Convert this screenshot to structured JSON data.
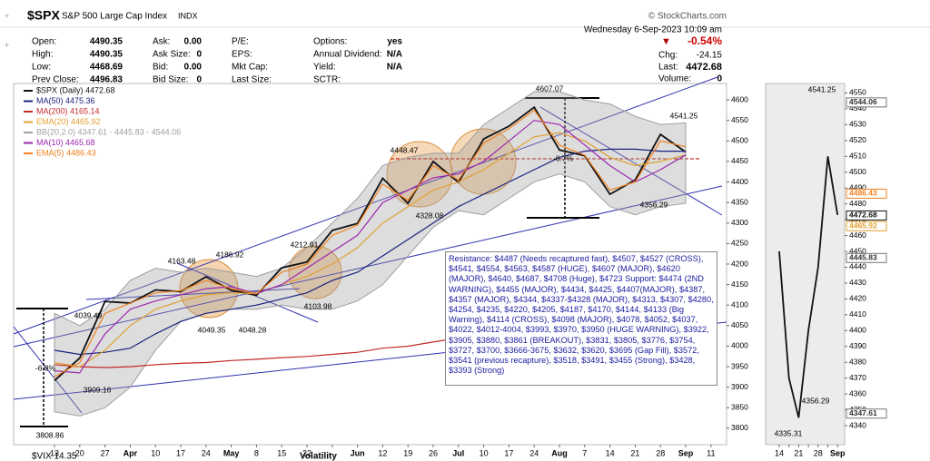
{
  "header": {
    "symbol": "$SPX",
    "name": "S&P 500 Large Cap Index",
    "exchange": "INDX",
    "date": "Wednesday  6-Sep-2023 10:09 am",
    "source": "© StockCharts.com"
  },
  "quote": {
    "rows": [
      [
        {
          "label": "Open:",
          "value": "4490.35"
        },
        {
          "label": "Ask:",
          "value": "0.00"
        },
        {
          "label": "P/E:"
        },
        {
          "label": "Options:",
          "value": "yes"
        }
      ],
      [
        {
          "label": "High:",
          "value": "4490.35"
        },
        {
          "label": "Ask Size:",
          "value": "0"
        },
        {
          "label": "EPS:"
        },
        {
          "label": "Annual Dividend:",
          "value": "N/A"
        }
      ],
      [
        {
          "label": "Low:",
          "value": "4468.69"
        },
        {
          "label": "Bid:",
          "value": "0.00"
        },
        {
          "label": "Mkt Cap:"
        },
        {
          "label": "Yield:",
          "value": "N/A"
        }
      ],
      [
        {
          "label": "Prev Close:",
          "value": "4496.83"
        },
        {
          "label": "Bid Size:",
          "value": "0"
        },
        {
          "label": "Last Size:"
        },
        {
          "label": "SCTR:"
        }
      ]
    ]
  },
  "change": {
    "pct": "-0.54%",
    "chg_label": "Chg:",
    "chg": "-24.15",
    "last_label": "Last:",
    "last": "4472.68",
    "volume_label": "Volume:",
    "volume": "0"
  },
  "chart_data": [
    {
      "type": "line",
      "categories": [
        "13",
        "20",
        "27",
        "Apr",
        "10",
        "17",
        "24",
        "May",
        "8",
        "15",
        "22",
        null,
        "Jun",
        "12",
        "19",
        "26",
        "Jul",
        "10",
        "17",
        "24",
        "Aug",
        "7",
        "14",
        "21",
        "28",
        "Sep",
        "11"
      ],
      "ylim": [
        3760,
        4640
      ],
      "yticks": [
        3800,
        3850,
        3900,
        3950,
        4000,
        4050,
        4100,
        4150,
        4200,
        4250,
        4300,
        4350,
        4400,
        4450,
        4500,
        4550,
        4600
      ],
      "series": [
        {
          "name": "$SPX (Daily) 4472.68",
          "color": "#111111",
          "values": [
            3916,
            3971,
            4109,
            4105,
            4137,
            4133,
            4169,
            4136,
            4124,
            4191,
            4205,
            4282,
            4299,
            4409,
            4348,
            4450,
            4399,
            4505,
            4536,
            4582,
            4478,
            4464,
            4370,
            4405,
            4516,
            4473,
            null
          ]
        },
        {
          "name": "MA(50) 4475.36",
          "color": "#1a237e",
          "values": [
            3990,
            3980,
            3985,
            3995,
            4030,
            4060,
            4080,
            4090,
            4100,
            4115,
            4130,
            4160,
            4180,
            4220,
            4260,
            4300,
            4340,
            4370,
            4400,
            4430,
            4460,
            4475,
            4480,
            4480,
            4475,
            4475,
            null
          ]
        },
        {
          "name": "MA(200) 4165.14",
          "color": "#c62828",
          "values": [
            3955,
            3950,
            3948,
            3950,
            3955,
            3958,
            3960,
            3965,
            3968,
            3972,
            3975,
            3980,
            3985,
            3995,
            4000,
            4010,
            4020,
            4030,
            4045,
            4060,
            4075,
            4090,
            4105,
            4120,
            4140,
            4165,
            null
          ]
        },
        {
          "name": "EMA(20) 4465.92",
          "color": "#e0a030",
          "values": [
            3960,
            3950,
            3990,
            4050,
            4090,
            4110,
            4125,
            4130,
            4128,
            4150,
            4170,
            4200,
            4240,
            4300,
            4340,
            4380,
            4400,
            4430,
            4470,
            4510,
            4520,
            4500,
            4460,
            4440,
            4450,
            4466,
            null
          ]
        },
        {
          "name": "MA(10) 4465.68",
          "color": "#9c27b0",
          "values": [
            3940,
            3935,
            4030,
            4090,
            4110,
            4125,
            4140,
            4145,
            4128,
            4150,
            4190,
            4230,
            4270,
            4350,
            4380,
            4410,
            4420,
            4450,
            4500,
            4550,
            4540,
            4490,
            4440,
            4400,
            4430,
            4466,
            null
          ]
        },
        {
          "name": "EMA(5) 4486.43",
          "color": "#f08020",
          "values": [
            3925,
            3960,
            4080,
            4105,
            4130,
            4135,
            4160,
            4140,
            4128,
            4180,
            4200,
            4270,
            4295,
            4395,
            4355,
            4440,
            4405,
            4495,
            4530,
            4575,
            4490,
            4465,
            4380,
            4400,
            4500,
            4486,
            null
          ]
        }
      ],
      "band": {
        "name": "BB(20,2.0) 4347.61 - 4445.83 - 4544.06",
        "color": "#9e9e9e",
        "upper": [
          4080,
          4050,
          4090,
          4160,
          4190,
          4180,
          4190,
          4180,
          4170,
          4190,
          4240,
          4300,
          4360,
          4440,
          4460,
          4470,
          4470,
          4540,
          4580,
          4620,
          4620,
          4600,
          4590,
          4560,
          4540,
          4544,
          null
        ],
        "lower": [
          3840,
          3830,
          3850,
          3900,
          3990,
          4060,
          4080,
          4090,
          4090,
          4100,
          4090,
          4090,
          4110,
          4150,
          4220,
          4290,
          4330,
          4320,
          4360,
          4400,
          4420,
          4400,
          4340,
          4320,
          4340,
          4348,
          null
        ]
      },
      "annotations": [
        "4607.07",
        "4541.25",
        "4448.47",
        "4328.08",
        "4212.91",
        "4186.92",
        "4163.48",
        "4103.98",
        "4049.35",
        "4048.28",
        "4039.49",
        "3909.16",
        "3808.86",
        "4356.29",
        "-6.8%",
        "-6.7%"
      ],
      "note": "Resistance: $4487 (Needs recaptured fast), $4507, $4527 (CROSS), $4541, $4554, $4563, $4587 (HUGE), $4607 (MAJOR), $4620 (MAJOR), $4640, $4687, $4708 (Huge), $4723 Support: $4474 (2ND WARNING), $4455 (MAJOR), $4434, $4425, $4407(MAJOR), $4387, $4357 (MAJOR), $4344, $4337-$4328 (MAJOR), $4313, $4307, $4280, $4254, $4235, $4220, $4205, $4187, $4170, $4144, $4133 (Big Warning), $4114 (CROSS), $4098 (MAJOR), $4078, $4052, $4037, $4022, $4012-4004, $3993, $3970, $3950 (HUGE WARNING), $3922, $3905, $3880, $3861 (BREAKOUT), $3831, $3805, $3776, $3754, $3727, $3700, $3666-3675, $3632, $3620, $3695 (Gap Fill), $3572, $3541 (previous recapture), $3518, $3491, $3455 (Strong), $3428, $3393 (Strong)"
    },
    {
      "type": "line",
      "categories": [
        "14",
        null,
        "21",
        null,
        "28",
        null,
        "Sep"
      ],
      "ylim": [
        4328,
        4556
      ],
      "yticks": [
        4340,
        4350,
        4360,
        4370,
        4380,
        4390,
        4400,
        4410,
        4420,
        4430,
        4440,
        4450,
        4460,
        4470,
        4480,
        4490,
        4500,
        4510,
        4520,
        4530,
        4540,
        4550
      ],
      "series": [
        {
          "name": "$SPX",
          "color": "#111111",
          "values": [
            4450,
            4370,
            4345,
            4400,
            4440,
            4510,
            4473
          ]
        }
      ],
      "tags": [
        {
          "label": "4544.06",
          "value": 4544.06,
          "color": "#777777"
        },
        {
          "label": "4486.43",
          "value": 4486.43,
          "color": "#f08020"
        },
        {
          "label": "4472.68",
          "value": 4472.68,
          "color": "#111111"
        },
        {
          "label": "4465.92",
          "value": 4465.92,
          "color": "#e0a030"
        },
        {
          "label": "4445.83",
          "value": 4445.83,
          "color": "#777777"
        },
        {
          "label": "4347.61",
          "value": 4347.61,
          "color": "#777777"
        }
      ],
      "annotations": [
        "4541.25",
        "4356.29",
        "4335.31"
      ]
    }
  ],
  "footer": {
    "symbol": "$VIX 14.35",
    "panel": "Volatility"
  }
}
